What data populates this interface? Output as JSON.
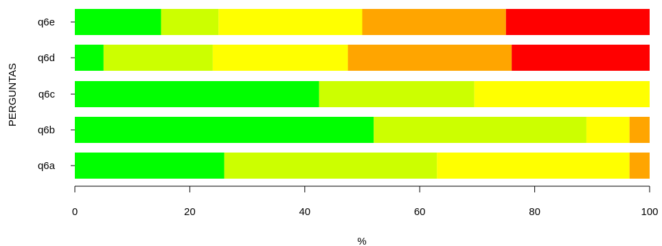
{
  "chart_data": {
    "type": "bar",
    "orientation": "horizontal",
    "stacked": true,
    "categories": [
      "q6a",
      "q6b",
      "q6c",
      "q6d",
      "q6e"
    ],
    "series": [
      {
        "color": "#00ff00",
        "values": [
          26,
          52,
          42.5,
          5,
          15
        ]
      },
      {
        "color": "#ccff00",
        "values": [
          37,
          37,
          27,
          19,
          10
        ]
      },
      {
        "color": "#ffff00",
        "values": [
          33.5,
          7.5,
          30.5,
          23.5,
          25
        ]
      },
      {
        "color": "#ffa500",
        "values": [
          3.5,
          3.5,
          0,
          28.5,
          25
        ]
      },
      {
        "color": "#ff0000",
        "values": [
          0,
          0,
          0,
          24,
          25
        ]
      }
    ],
    "xlabel": "%",
    "ylabel": "PERGUNTAS",
    "xlim": [
      0,
      100
    ],
    "xticks": [
      0,
      20,
      40,
      60,
      80,
      100
    ],
    "xtick_labels": [
      "0",
      "20",
      "40",
      "60",
      "80",
      "100"
    ],
    "grid": false,
    "legend": "none"
  }
}
